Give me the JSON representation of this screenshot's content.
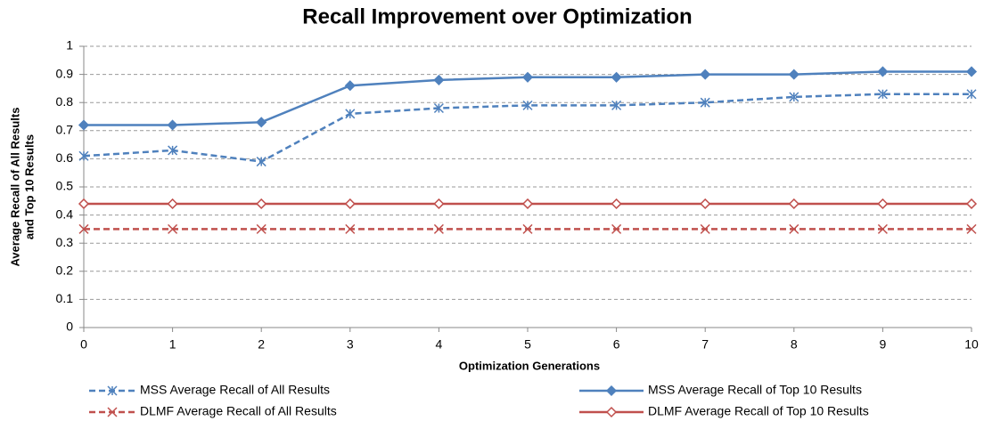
{
  "chart_data": {
    "type": "line",
    "title": "Recall Improvement over Optimization",
    "x_label": "Optimization Generations",
    "y_label": [
      "Average Recall of All Results",
      "and Top 10 Results"
    ],
    "x": [
      0,
      1,
      2,
      3,
      4,
      5,
      6,
      7,
      8,
      9,
      10
    ],
    "xlim": [
      0,
      10
    ],
    "xticks": [
      0,
      1,
      2,
      3,
      4,
      5,
      6,
      7,
      8,
      9,
      10
    ],
    "ylim": [
      0,
      1
    ],
    "yticks": [
      0,
      0.1,
      0.2,
      0.3,
      0.4,
      0.5,
      0.6,
      0.7,
      0.8,
      0.9,
      1
    ],
    "grid": true,
    "series": [
      {
        "name": "MSS Average Recall of All Results",
        "color": "#4f81bd",
        "dashed": true,
        "marker": "star",
        "values": [
          0.61,
          0.63,
          0.59,
          0.76,
          0.78,
          0.79,
          0.79,
          0.8,
          0.82,
          0.83,
          0.83
        ]
      },
      {
        "name": "MSS Average Recall of Top 10 Results",
        "color": "#4f81bd",
        "dashed": false,
        "marker": "diamond",
        "values": [
          0.72,
          0.72,
          0.73,
          0.86,
          0.88,
          0.89,
          0.89,
          0.9,
          0.9,
          0.91,
          0.91
        ]
      },
      {
        "name": "DLMF Average Recall of All Results",
        "color": "#c0504d",
        "dashed": true,
        "marker": "x",
        "values": [
          0.35,
          0.35,
          0.35,
          0.35,
          0.35,
          0.35,
          0.35,
          0.35,
          0.35,
          0.35,
          0.35
        ]
      },
      {
        "name": "DLMF Average Recall of Top 10 Results",
        "color": "#c0504d",
        "dashed": false,
        "marker": "open-diamond",
        "values": [
          0.44,
          0.44,
          0.44,
          0.44,
          0.44,
          0.44,
          0.44,
          0.44,
          0.44,
          0.44,
          0.44
        ]
      }
    ]
  }
}
